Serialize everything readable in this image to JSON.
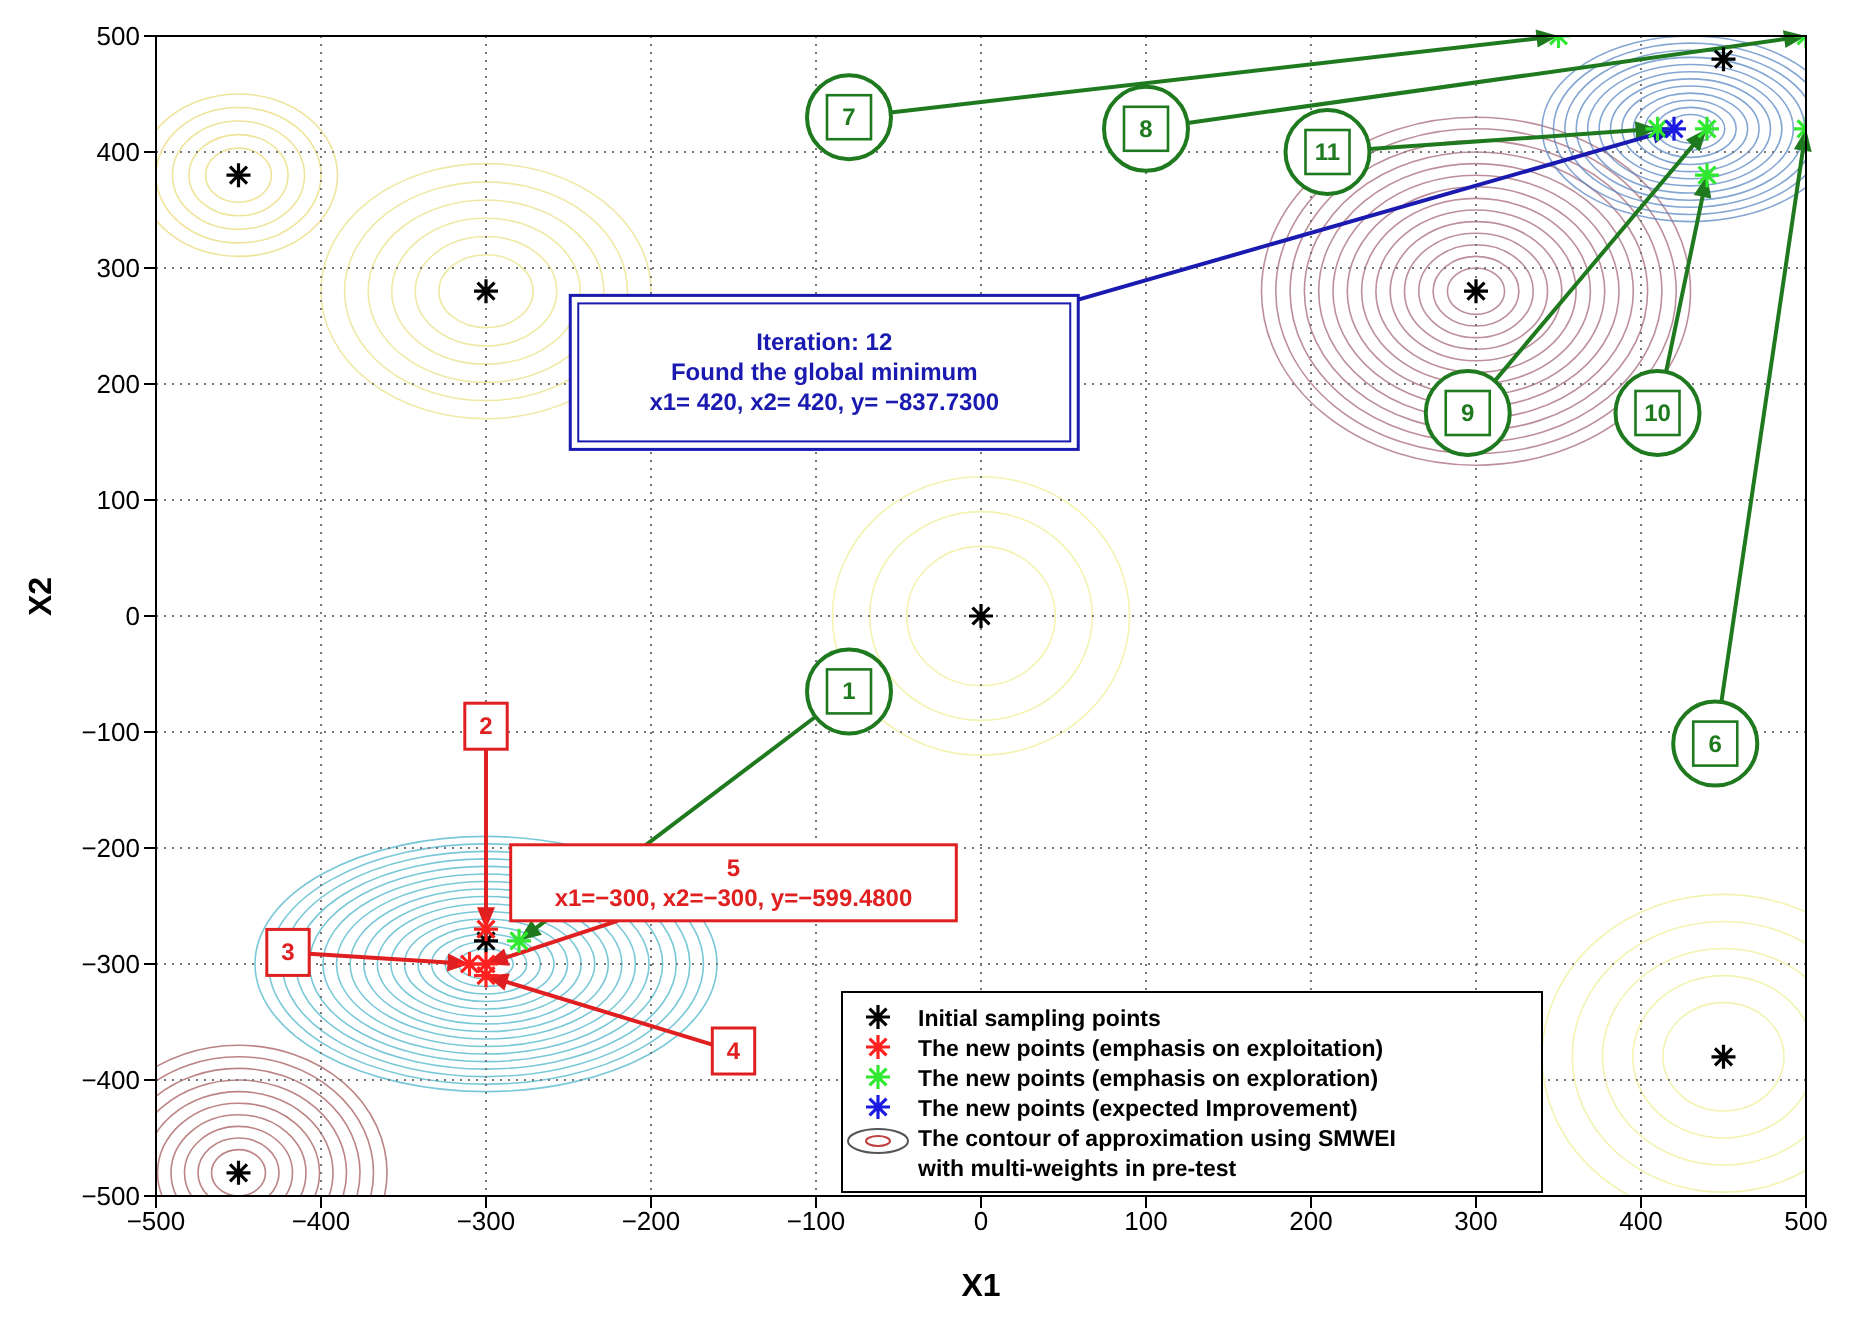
{
  "chart_data": {
    "type": "scatter",
    "xlabel": "X1",
    "ylabel": "X2",
    "xlim": [
      -500,
      500
    ],
    "ylim": [
      -500,
      500
    ],
    "xticks": [
      -500,
      -400,
      -300,
      -200,
      -100,
      0,
      100,
      200,
      300,
      400,
      500
    ],
    "yticks": [
      -500,
      -400,
      -300,
      -200,
      -100,
      0,
      100,
      200,
      300,
      400,
      500
    ],
    "grid": true,
    "legend": "bottom right",
    "marker": "cross",
    "series": [
      {
        "name": "Initial sampling points",
        "color": "#000000",
        "x": [
          -450,
          -300,
          0,
          300,
          450,
          -450,
          -300,
          450
        ],
        "values": [
          380,
          280,
          0,
          280,
          -380,
          -480,
          -280,
          480
        ]
      },
      {
        "name": "The new points (emphasis on exploitation)",
        "color": "#ff2020",
        "x": [
          -300,
          -310,
          -300,
          -300
        ],
        "values": [
          -270,
          -300,
          -300,
          -310
        ]
      },
      {
        "name": "The new points (emphasis on exploration)",
        "color": "#30e830",
        "x": [
          -280,
          500,
          350,
          500,
          410,
          440,
          440
        ],
        "values": [
          -280,
          420,
          500,
          500,
          420,
          420,
          380
        ]
      },
      {
        "name": "The new points (expected Improvement)",
        "color": "#1a1ae0",
        "x": [
          420
        ],
        "values": [
          420
        ]
      }
    ],
    "annotations": [
      "1",
      "2",
      "3",
      "4",
      "5\nx1=−300, x2=−300, y=−599.4800",
      "6",
      "7",
      "8",
      "9",
      "10",
      "11",
      "Iteration: 12\nFound the global minimum\nx1= 420, x2= 420, y= −837.7300",
      "The contour of approximation using SMWEI\nwith multi-weights in pre-test"
    ]
  }
}
